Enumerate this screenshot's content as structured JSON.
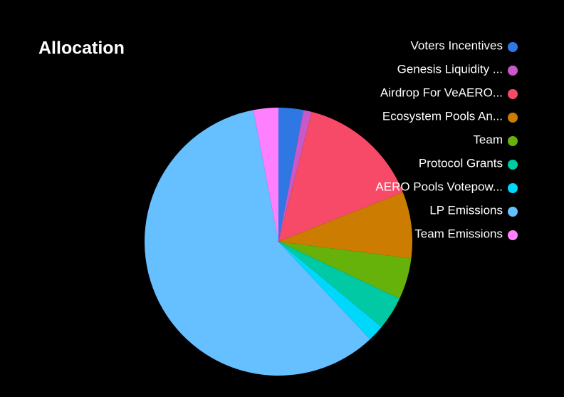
{
  "chart_data": {
    "type": "pie",
    "title": "Allocation",
    "categories": [
      "Voters Incentives",
      "Genesis Liquidity ...",
      "Airdrop For VeAERO...",
      "Ecosystem Pools An...",
      "Team",
      "Protocol Grants",
      "AERO Pools Votepow...",
      "LP Emissions",
      "Team Emissions"
    ],
    "values": [
      3,
      1,
      15,
      8,
      5,
      4,
      2,
      59,
      3
    ],
    "colors": [
      "#2f78e4",
      "#c75ac8",
      "#f64a68",
      "#cc7c00",
      "#66b20a",
      "#00c9a3",
      "#00d8fb",
      "#66bfff",
      "#ff80ff"
    ],
    "legend": "top-right"
  }
}
